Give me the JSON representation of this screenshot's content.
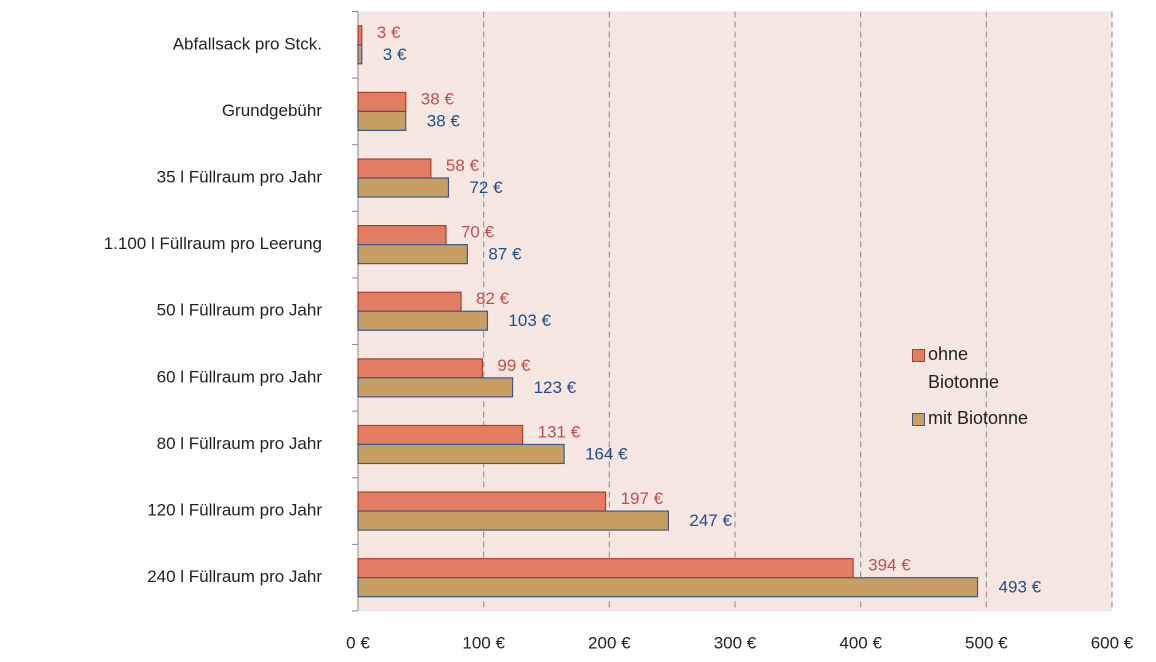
{
  "chart_data": {
    "type": "bar",
    "orientation": "horizontal",
    "categories": [
      "Abfallsack pro Stck.",
      "Grundgebühr",
      "35 l Füllraum pro Jahr",
      "1.100 l Füllraum pro Leerung",
      "50 l Füllraum pro Jahr",
      "60 l Füllraum pro Jahr",
      "80 l Füllraum pro Jahr",
      "120 l Füllraum pro Jahr",
      "240 l Füllraum pro Jahr"
    ],
    "series": [
      {
        "name": "ohne Biotonne",
        "color": "#e27c62",
        "label_color": "#c0504d",
        "values": [
          3,
          38,
          58,
          70,
          82,
          99,
          131,
          197,
          394
        ],
        "value_labels": [
          "3 €",
          "38 €",
          "58 €",
          "70 €",
          "82 €",
          "99 €",
          "131 €",
          "197 €",
          "394 €"
        ]
      },
      {
        "name": "mit Biotonne",
        "color": "#c89f62",
        "label_color": "#1f4e8c",
        "values": [
          3,
          38,
          72,
          87,
          103,
          123,
          164,
          247,
          493
        ],
        "value_labels": [
          "3 €",
          "38 €",
          "72 €",
          "87 €",
          "103 €",
          "123 €",
          "164 €",
          "247 €",
          "493 €"
        ]
      }
    ],
    "xlim": [
      0,
      600
    ],
    "xticks": [
      {
        "value": 0,
        "label": "0 €"
      },
      {
        "value": 100,
        "label": "100 €"
      },
      {
        "value": 200,
        "label": "200 €"
      },
      {
        "value": 300,
        "label": "300 €"
      },
      {
        "value": 400,
        "label": "400 €"
      },
      {
        "value": 500,
        "label": "500 €"
      },
      {
        "value": 600,
        "label": "600 €"
      }
    ],
    "grid": true,
    "legend": "right"
  }
}
